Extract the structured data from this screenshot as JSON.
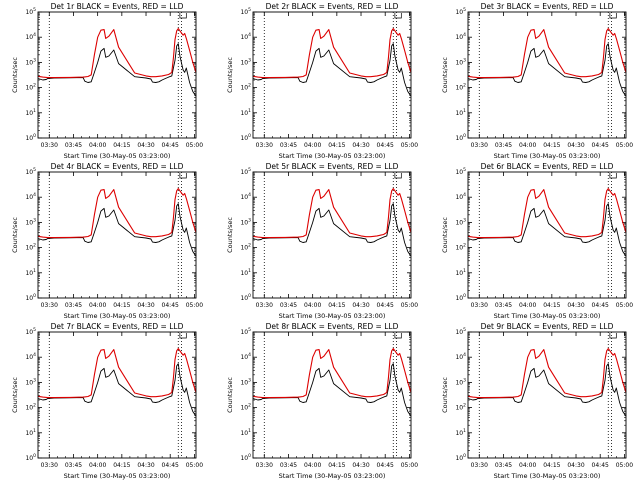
{
  "chart_data": [
    {
      "type": "line",
      "title": "Det 1r BLACK = Events, RED = LLD",
      "xlabel": "Start Time (30-May-05 03:23:00)",
      "ylabel": "Counts/sec"
    },
    {
      "type": "line",
      "title": "Det 2r BLACK = Events, RED = LLD",
      "xlabel": "Start Time (30-May-05 03:23:00)",
      "ylabel": "Counts/sec"
    },
    {
      "type": "line",
      "title": "Det 3r BLACK = Events, RED = LLD",
      "xlabel": "Start Time (30-May-05 03:23:00)",
      "ylabel": "Counts/sec"
    },
    {
      "type": "line",
      "title": "Det 4r BLACK = Events, RED = LLD",
      "xlabel": "Start Time (30-May-05 03:23:00)",
      "ylabel": "Counts/sec"
    },
    {
      "type": "line",
      "title": "Det 5r BLACK = Events, RED = LLD",
      "xlabel": "Start Time (30-May-05 03:23:00)",
      "ylabel": "Counts/sec"
    },
    {
      "type": "line",
      "title": "Det 6r BLACK = Events, RED = LLD",
      "xlabel": "Start Time (30-May-05 03:23:00)",
      "ylabel": "Counts/sec"
    },
    {
      "type": "line",
      "title": "Det 7r BLACK = Events, RED = LLD",
      "xlabel": "Start Time (30-May-05 03:23:00)",
      "ylabel": "Counts/sec"
    },
    {
      "type": "line",
      "title": "Det 8r BLACK = Events, RED = LLD",
      "xlabel": "Start Time (30-May-05 03:23:00)",
      "ylabel": "Counts/sec"
    },
    {
      "type": "line",
      "title": "Det 9r BLACK = Events, RED = LLD",
      "xlabel": "Start Time (30-May-05 03:23:00)",
      "ylabel": "Counts/sec"
    }
  ],
  "shared": {
    "x_ticks": [
      "03:30",
      "03:45",
      "04:00",
      "04:15",
      "04:30",
      "04:45",
      "05:00"
    ],
    "x_tick_minutes": [
      7,
      22,
      37,
      52,
      67,
      82,
      97
    ],
    "x_range_minutes": [
      0,
      98
    ],
    "y_scale": "log",
    "y_range_exp": [
      0,
      5
    ],
    "y_tick_exponents": [
      0,
      1,
      2,
      3,
      4,
      5
    ],
    "y_tick_base": "10",
    "dotted_marker_minutes": [
      7,
      87,
      89
    ],
    "bracket_minutes": [
      88,
      92
    ],
    "series": [
      {
        "name": "Events",
        "color": "#000000",
        "x": [
          0,
          3,
          5,
          6,
          10,
          20,
          28,
          29,
          31,
          33,
          35,
          37,
          39,
          41,
          42,
          44,
          47,
          50,
          60,
          67,
          70,
          71,
          73,
          75,
          77,
          79,
          81,
          83,
          84,
          85,
          86,
          87,
          88,
          90,
          91,
          92,
          94,
          96,
          98
        ],
        "y": [
          230,
          200,
          210,
          230,
          240,
          245,
          250,
          180,
          160,
          170,
          400,
          1000,
          2800,
          3600,
          1600,
          1800,
          3100,
          900,
          270,
          240,
          220,
          165,
          160,
          170,
          200,
          230,
          260,
          290,
          600,
          1200,
          4500,
          5500,
          1800,
          500,
          400,
          600,
          160,
          70,
          45
        ]
      },
      {
        "name": "LLD",
        "color": "#dd0000",
        "x": [
          0,
          3,
          6,
          10,
          20,
          28,
          29,
          31,
          33,
          35,
          37,
          39,
          41,
          42,
          44,
          47,
          50,
          60,
          67,
          70,
          73,
          77,
          81,
          83,
          84,
          85,
          86,
          87,
          88,
          90,
          91,
          92,
          94,
          96,
          98
        ],
        "y": [
          280,
          260,
          250,
          250,
          255,
          260,
          265,
          275,
          320,
          2000,
          10000,
          19000,
          20000,
          9000,
          11000,
          20000,
          4000,
          380,
          290,
          270,
          270,
          290,
          330,
          400,
          1500,
          8000,
          18000,
          22000,
          18000,
          12000,
          14000,
          9000,
          3000,
          1000,
          400
        ]
      }
    ]
  }
}
